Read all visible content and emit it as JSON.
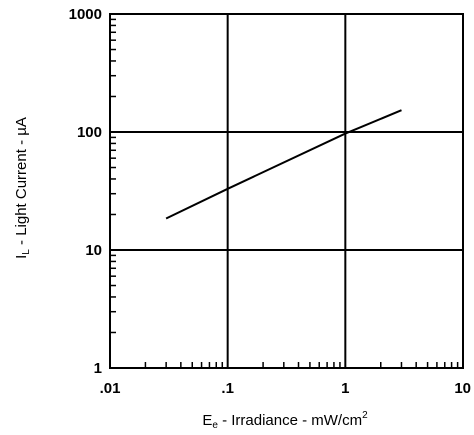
{
  "chart_data": {
    "type": "line",
    "x_scale": "log",
    "y_scale": "log",
    "xlim": [
      0.01,
      10
    ],
    "ylim": [
      1,
      1000
    ],
    "grid": true,
    "x_ticks": [
      {
        "value": 0.01,
        "label": ".01"
      },
      {
        "value": 0.1,
        "label": ".1"
      },
      {
        "value": 1,
        "label": "1"
      },
      {
        "value": 10,
        "label": "10"
      }
    ],
    "y_ticks": [
      {
        "value": 1,
        "label": "1"
      },
      {
        "value": 10,
        "label": "10"
      },
      {
        "value": 100,
        "label": "100"
      },
      {
        "value": 1000,
        "label": "1000"
      }
    ],
    "xlabel": {
      "main": "E",
      "sub": "e",
      "text": " - Irradiance - mW/cm",
      "sup": "2"
    },
    "ylabel": {
      "main": "I",
      "sub": "L",
      "text": " - Light Current - µA"
    },
    "series": [
      {
        "x": [
          0.03,
          0.1,
          1,
          3
        ],
        "y": [
          18.5,
          33,
          97,
          153
        ]
      }
    ]
  }
}
